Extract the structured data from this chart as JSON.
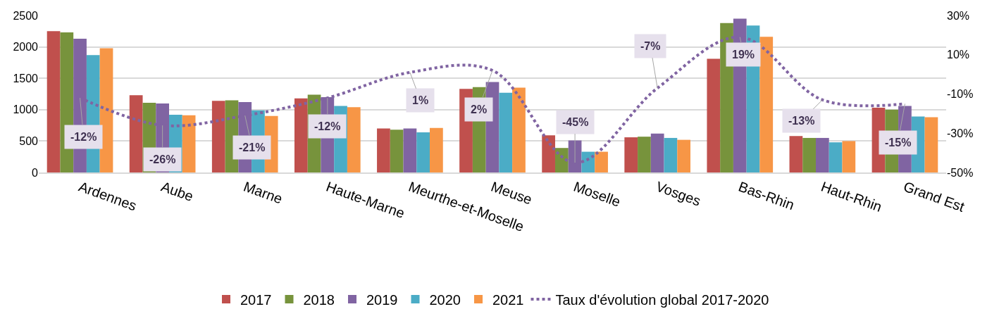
{
  "chart_data": {
    "type": "bar",
    "categories": [
      "Ardennes",
      "Aube",
      "Marne",
      "Haute-Marne",
      "Meurthe-et-Moselle",
      "Meuse",
      "Moselle",
      "Vosges",
      "Bas-Rhin",
      "Haut-Rhin",
      "Grand Est"
    ],
    "series": [
      {
        "name": "2017",
        "color": "#c0504d",
        "values": [
          2250,
          1230,
          1140,
          1180,
          700,
          1330,
          590,
          560,
          1810,
          580,
          1030
        ]
      },
      {
        "name": "2018",
        "color": "#77933c",
        "values": [
          2230,
          1110,
          1150,
          1240,
          680,
          1360,
          390,
          570,
          2380,
          550,
          1000
        ]
      },
      {
        "name": "2019",
        "color": "#8064a2",
        "values": [
          2130,
          1100,
          1120,
          1200,
          700,
          1440,
          510,
          620,
          2450,
          550,
          1060
        ]
      },
      {
        "name": "2020",
        "color": "#4bacc6",
        "values": [
          1870,
          920,
          990,
          1060,
          640,
          1270,
          330,
          550,
          2340,
          480,
          890
        ]
      },
      {
        "name": "2021",
        "color": "#f79646",
        "values": [
          1980,
          910,
          900,
          1040,
          710,
          1350,
          330,
          520,
          2160,
          500,
          880
        ]
      },
      {
        "name": "Taux d'évolution global 2017-2020",
        "type": "line",
        "axis": "y2",
        "color": "#8064a2",
        "line_style": "dotted",
        "values": [
          -12,
          -26,
          -21,
          -12,
          1,
          2,
          -45,
          -7,
          19,
          -13,
          -15
        ],
        "value_labels": [
          "-12%",
          "-26%",
          "-21%",
          "-12%",
          "1%",
          "2%",
          "-45%",
          "-7%",
          "19%",
          "-13%",
          "-15%"
        ]
      }
    ],
    "ylim": [
      0,
      2500
    ],
    "yticks": [
      0,
      500,
      1000,
      1500,
      2000,
      2500
    ],
    "y2lim": [
      -50,
      30
    ],
    "y2ticks": [
      {
        "value": -50,
        "label": "-50%"
      },
      {
        "value": -30,
        "label": "-30%"
      },
      {
        "value": -10,
        "label": "-10%"
      },
      {
        "value": 10,
        "label": "10%"
      },
      {
        "value": 30,
        "label": "30%"
      }
    ],
    "grid": "y",
    "legend": "bottom"
  }
}
